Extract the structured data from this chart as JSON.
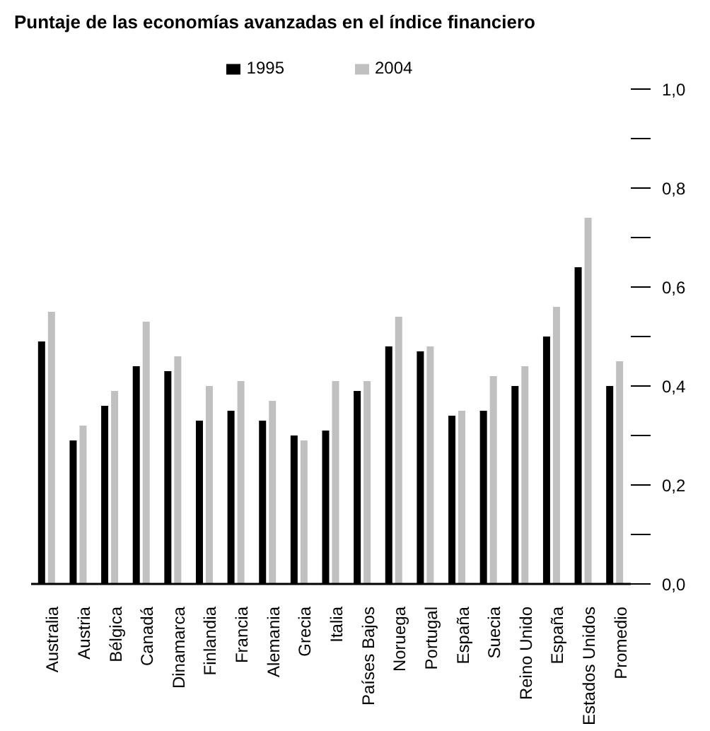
{
  "chart_data": {
    "type": "bar",
    "title": "Puntaje de las economías avanzadas en el índice financiero",
    "categories": [
      "Australia",
      "Austria",
      "Bélgica",
      "Canadá",
      "Dinamarca",
      "Finlandia",
      "Francia",
      "Alemania",
      "Grecia",
      "Italia",
      "Países Bajos",
      "Noruega",
      "Portugal",
      "España",
      "Suecia",
      "Reino Unido",
      "España",
      "Estados Unidos",
      "Promedio"
    ],
    "series": [
      {
        "name": "1995",
        "color": "#000000",
        "values": [
          0.49,
          0.29,
          0.36,
          0.44,
          0.43,
          0.33,
          0.35,
          0.33,
          0.3,
          0.31,
          0.39,
          0.48,
          0.47,
          0.34,
          0.35,
          0.4,
          0.5,
          0.64,
          0.4
        ]
      },
      {
        "name": "2004",
        "color": "#c0c0c0",
        "values": [
          0.55,
          0.32,
          0.39,
          0.53,
          0.46,
          0.4,
          0.41,
          0.37,
          0.29,
          0.41,
          0.41,
          0.54,
          0.48,
          0.35,
          0.42,
          0.44,
          0.56,
          0.74,
          0.45
        ]
      }
    ],
    "ylim": [
      0,
      1
    ],
    "yticks": [
      {
        "value": 0,
        "label": "0,0"
      },
      {
        "value": 0.1,
        "label": null
      },
      {
        "value": 0.2,
        "label": "0,2"
      },
      {
        "value": 0.3,
        "label": null
      },
      {
        "value": 0.4,
        "label": "0,4"
      },
      {
        "value": 0.5,
        "label": null
      },
      {
        "value": 0.6,
        "label": "0,6"
      },
      {
        "value": 0.7,
        "label": null
      },
      {
        "value": 0.8,
        "label": "0,8"
      },
      {
        "value": 0.9,
        "label": null
      },
      {
        "value": 1,
        "label": "1,0"
      }
    ],
    "grid": false,
    "legend": "top"
  }
}
